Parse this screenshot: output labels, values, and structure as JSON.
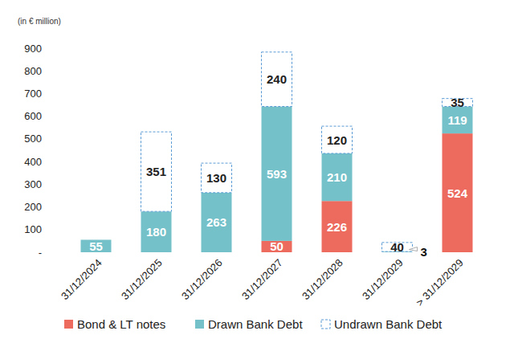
{
  "chart_data": {
    "type": "bar",
    "stacked": true,
    "data_labels": true,
    "grid": false,
    "legend": "bottom",
    "y_label": "(in € million)",
    "categories": [
      "31/12/2024",
      "31/12/2025",
      "31/12/2026",
      "31/12/2027",
      "31/12/2028",
      "31/12/2029",
      "> 31/12/2029"
    ],
    "series": [
      {
        "name": "Bond & LT notes",
        "color": "#ec6b5e",
        "values": [
          null,
          null,
          null,
          50,
          226,
          null,
          524
        ]
      },
      {
        "name": "Drawn Bank Debt",
        "color": "#74c1c9",
        "values": [
          55,
          180,
          263,
          593,
          210,
          3,
          119
        ]
      },
      {
        "name": "Undrawn Bank Debt",
        "color": "#5b9bd5",
        "line_style": "dashed",
        "values": [
          null,
          351,
          130,
          240,
          120,
          40,
          35
        ]
      }
    ],
    "ylim": [
      0,
      900
    ],
    "yticks": [
      {
        "value": 0,
        "label": "-"
      },
      100,
      200,
      300,
      400,
      500,
      600,
      700,
      800,
      900
    ]
  }
}
